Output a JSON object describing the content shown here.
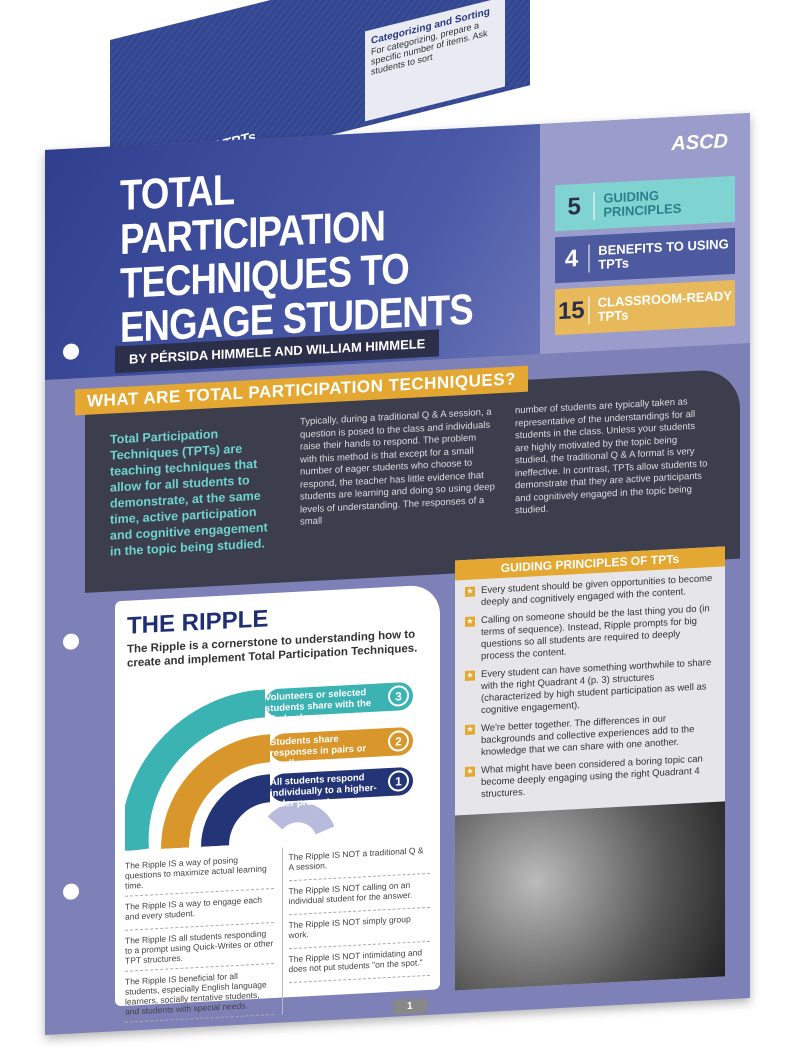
{
  "back_page": {
    "heading": "READY TPTs",
    "inset_title": "Categorizing and Sorting",
    "inset_text": "For categorizing, prepare a specific number of items. Ask students to sort"
  },
  "cover": {
    "title": "TOTAL PARTICIPATION TECHNIQUES TO ENGAGE STUDENTS",
    "authors": "BY PÉRSIDA HIMMELE AND WILLIAM HIMMELE",
    "logo": "ASCD",
    "stats": [
      {
        "number": "5",
        "label": "GUIDING PRINCIPLES"
      },
      {
        "number": "4",
        "label": "BENEFITS TO USING TPTs"
      },
      {
        "number": "15",
        "label": "CLASSROOM-READY TPTs"
      }
    ]
  },
  "what": {
    "heading": "WHAT ARE TOTAL PARTICIPATION TECHNIQUES?",
    "lead": "Total Participation Techniques (TPTs) are teaching techniques that allow for all students to demonstrate, at the same time, active participation and cognitive engagement in the topic being studied.",
    "col1": "Typically, during a traditional Q & A session, a question is posed to the class and individuals raise their hands to respond. The problem with this method is that except for a small number of eager students who choose to respond, the teacher has little evidence that students are learning and doing so using deep levels of understanding. The responses of a small",
    "col2": "number of students are typically taken as representative of the understandings for all students in the class. Unless your students are highly motivated by the topic being studied, the traditional Q & A format is very ineffective. In contrast, TPTs allow students to demonstrate that they are active participants and cognitively engaged in the topic being studied."
  },
  "ripple": {
    "title": "THE RIPPLE",
    "subtitle": "The Ripple is a cornerstone to understanding how to create and implement Total Participation Techniques.",
    "levels": [
      {
        "num": "3",
        "text": "Volunteers or selected students share with the whole class.",
        "color": "#3bb3b3"
      },
      {
        "num": "2",
        "text": "Students share responses in pairs or small groups.",
        "color": "#d9962a"
      },
      {
        "num": "1",
        "text": "All students respond individually to a higher-order prompt.",
        "color": "#233577"
      }
    ],
    "is": [
      "The Ripple IS a way of posing questions to maximize actual learning time.",
      "The Ripple IS a way to engage each and every student.",
      "The Ripple IS all students responding to a prompt using Quick-Writes or other TPT structures.",
      "The Ripple IS beneficial for all students, especially English language learners, socially tentative students, and students with special needs."
    ],
    "is_not": [
      "The Ripple IS NOT a traditional Q & A session.",
      "The Ripple IS NOT calling on an individual student for the answer.",
      "The Ripple IS NOT simply group work.",
      "The Ripple IS NOT intimidating and does not put students \"on the spot.\""
    ]
  },
  "guiding": {
    "heading": "GUIDING PRINCIPLES OF TPTs",
    "items": [
      "Every student should be given opportunities to become deeply and cognitively engaged with the content.",
      "Calling on someone should be the last thing you do (in terms of sequence). Instead, Ripple prompts for big questions so all students are required to deeply process the content.",
      "Every student can have something worthwhile to share with the right Quadrant 4 (p. 3) structures (characterized by high student participation as well as cognitive engagement).",
      "We're better together. The differences in our backgrounds and collective experiences add to the knowledge that we can share with one another.",
      "What might have been considered a boring topic can become deeply engaging using the right Quadrant 4 structures."
    ]
  },
  "page_number": "1"
}
